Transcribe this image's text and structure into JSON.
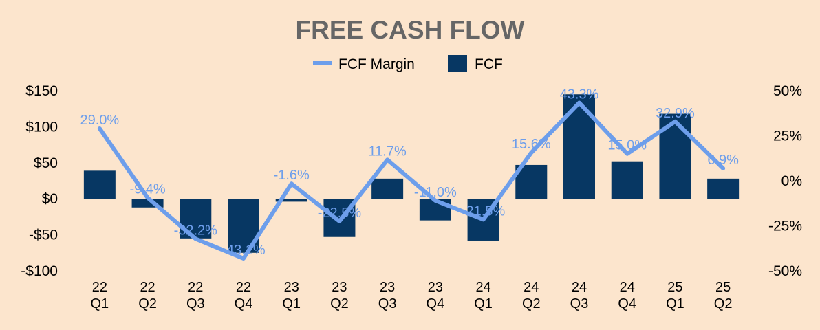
{
  "chart_data": {
    "type": "bar",
    "title": "FREE CASH FLOW",
    "categories": [
      [
        "22",
        "Q1"
      ],
      [
        "22",
        "Q2"
      ],
      [
        "22",
        "Q3"
      ],
      [
        "22",
        "Q4"
      ],
      [
        "23",
        "Q1"
      ],
      [
        "23",
        "Q2"
      ],
      [
        "23",
        "Q3"
      ],
      [
        "23",
        "Q4"
      ],
      [
        "24",
        "Q1"
      ],
      [
        "24",
        "Q2"
      ],
      [
        "24",
        "Q3"
      ],
      [
        "24",
        "Q4"
      ],
      [
        "25",
        "Q1"
      ],
      [
        "25",
        "Q2"
      ]
    ],
    "series": [
      {
        "name": "FCF",
        "type": "bar",
        "axis": "left",
        "color": "#073763",
        "values": [
          39,
          -12,
          -55,
          -75,
          -4,
          -53,
          28,
          -30,
          -58,
          47,
          145,
          52,
          118,
          28
        ]
      },
      {
        "name": "FCF Margin",
        "type": "line",
        "axis": "right",
        "color": "#6d9eeb",
        "values": [
          29.0,
          -9.4,
          -32.2,
          -43.1,
          -1.6,
          -22.5,
          11.7,
          -11.0,
          -21.5,
          15.6,
          43.3,
          15.0,
          32.9,
          6.9
        ],
        "labels": [
          "29.0%",
          "-9.4%",
          "-32.2%",
          "-43.1%",
          "-1.6%",
          "-22.5%",
          "11.7%",
          "-11.0%",
          "-21.5%",
          "15.6%",
          "43.3%",
          "15.0%",
          "32.9%",
          "6.9%"
        ]
      }
    ],
    "legend": {
      "position": "top",
      "entries": [
        "FCF Margin",
        "FCF"
      ]
    },
    "y_left": {
      "ylim": [
        -100,
        150
      ],
      "ticks": [
        150,
        100,
        50,
        0,
        -50,
        -100
      ],
      "tick_labels": [
        "$150",
        "$100",
        "$50",
        "$0",
        "-$50",
        "-$100"
      ]
    },
    "y_right": {
      "ylim": [
        -50,
        50
      ],
      "ticks": [
        50,
        25,
        0,
        -25,
        -50
      ],
      "tick_labels": [
        "50%",
        "25%",
        "0%",
        "-25%",
        "-50%"
      ]
    },
    "grid": false,
    "background": "#fce5cd"
  }
}
